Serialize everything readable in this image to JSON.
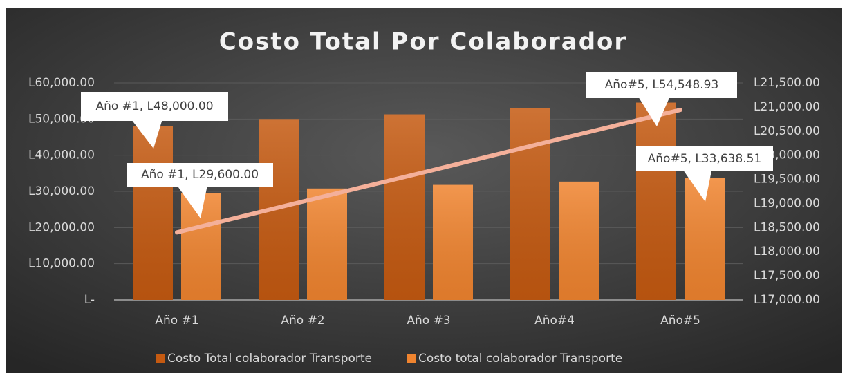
{
  "chart_data": {
    "type": "bar",
    "title": "Costo Total Por Colaborador",
    "categories": [
      "Año #1",
      "Año #2",
      "Año #3",
      "Año#4",
      "Año#5"
    ],
    "series": [
      {
        "name": "Costo Total colaborador Transporte",
        "color": "#c55a11",
        "values": [
          48000,
          50000,
          51300,
          53000,
          54548.93
        ],
        "value_labels": [
          "Año #1,  L48,000.00",
          null,
          null,
          null,
          "Año#5,  L54,548.93"
        ]
      },
      {
        "name": "Costo total colaborador Transporte",
        "color": "#f0842f",
        "values": [
          29600,
          30800,
          31800,
          32700,
          33638.51
        ],
        "value_labels": [
          "Año #1,  L29,600.00",
          null,
          null,
          null,
          "Año#5,  L33,638.51"
        ]
      },
      {
        "type": "line",
        "axis": "y2",
        "color": "#f4b09a",
        "values": [
          18400,
          19040,
          19670,
          20310,
          20940
        ]
      }
    ],
    "ylim": [
      0,
      60000
    ],
    "yticks": [
      {
        "value": 0,
        "label": "L-"
      },
      {
        "value": 10000,
        "label": "L10,000.00"
      },
      {
        "value": 20000,
        "label": "L20,000.00"
      },
      {
        "value": 30000,
        "label": "L30,000.00"
      },
      {
        "value": 40000,
        "label": "L40,000.00"
      },
      {
        "value": 50000,
        "label": "L50,000.00"
      },
      {
        "value": 60000,
        "label": "L60,000.00"
      }
    ],
    "y2lim": [
      17000,
      21500
    ],
    "y2ticks": [
      {
        "value": 17000,
        "label": "L17,000.00"
      },
      {
        "value": 17500,
        "label": "L17,500.00"
      },
      {
        "value": 18000,
        "label": "L18,000.00"
      },
      {
        "value": 18500,
        "label": "L18,500.00"
      },
      {
        "value": 19000,
        "label": "L19,000.00"
      },
      {
        "value": 19500,
        "label": "L19,500.00"
      },
      {
        "value": 20000,
        "label": "L20,000.00"
      },
      {
        "value": 20500,
        "label": "L20,500.00"
      },
      {
        "value": 21000,
        "label": "L21,000.00"
      },
      {
        "value": 21500,
        "label": "L21,500.00"
      }
    ],
    "grid": true
  }
}
